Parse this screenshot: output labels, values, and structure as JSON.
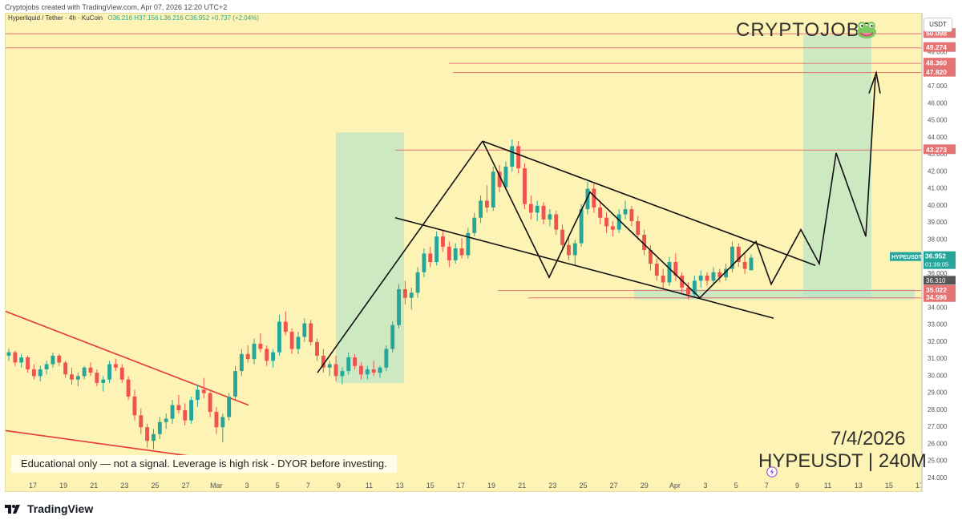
{
  "header": {
    "attribution": "Cryptojobs created with TradingView.com, Apr 07, 2026 12:20 UTC+2",
    "symbol_line": "Hyperliquid / Tether · 4h · KuCoin",
    "ohlc": "O36.216  H37.156  L36.216  C36.952  +0.737 (+2.04%)"
  },
  "branding": {
    "watermark": "CRYPTOJOBS",
    "date": "7/4/2026",
    "symbol_tf": "HYPEUSDT | 240M",
    "disclaimer": "Educational only — not a signal. Leverage is high risk - DYOR before investing.",
    "footer_logo": "TradingView",
    "currency": "USDT"
  },
  "colors": {
    "background": "#fdf3b4",
    "up": "#26a69a",
    "down": "#ef5350",
    "zone": "#b7e4c7",
    "level_line": "#e57373",
    "trend_red": "#e53935",
    "pattern": "#111111",
    "price_tag": "#26a69a"
  },
  "chart_data": {
    "type": "candlestick",
    "title": "",
    "timeframe": "4h",
    "exchange": "KuCoin",
    "pair": "HYPEUSDT",
    "y_axis": {
      "min": 24,
      "max": 51,
      "ticks": [
        24,
        25,
        26,
        27,
        28,
        29,
        30,
        31,
        32,
        33,
        34,
        35,
        36,
        37,
        38,
        39,
        40,
        41,
        42,
        43,
        44,
        45,
        46,
        47,
        48,
        49
      ]
    },
    "x_axis": {
      "tick_labels": [
        "17",
        "19",
        "21",
        "23",
        "25",
        "27",
        "Mar",
        "3",
        "5",
        "7",
        "9",
        "11",
        "13",
        "15",
        "17",
        "19",
        "21",
        "23",
        "25",
        "27",
        "29",
        "Apr",
        "3",
        "5",
        "7",
        "9",
        "11",
        "13",
        "15",
        "17"
      ]
    },
    "price_levels": [
      {
        "value": 50.098,
        "label": "50.098"
      },
      {
        "value": 49.274,
        "label": "49.274"
      },
      {
        "value": 48.36,
        "label": "48.360"
      },
      {
        "value": 47.82,
        "label": "47.820"
      },
      {
        "value": 43.273,
        "label": "43.273"
      },
      {
        "value": 35.022,
        "label": "35.022"
      },
      {
        "value": 34.596,
        "label": "34.596"
      }
    ],
    "current_price": {
      "label": "HYPEUSDT",
      "value": "36.952",
      "countdown": "01:39:05",
      "prev": "36.310"
    },
    "candles": [
      [
        31.2,
        31.6,
        30.9,
        31.4
      ],
      [
        31.4,
        31.5,
        30.6,
        30.8
      ],
      [
        30.8,
        31.3,
        30.5,
        31.1
      ],
      [
        31.1,
        31.2,
        30.2,
        30.4
      ],
      [
        30.4,
        30.7,
        29.8,
        30.0
      ],
      [
        30.0,
        30.6,
        29.7,
        30.4
      ],
      [
        30.4,
        30.9,
        30.1,
        30.7
      ],
      [
        30.7,
        31.4,
        30.5,
        31.2
      ],
      [
        31.2,
        31.3,
        30.6,
        30.8
      ],
      [
        30.8,
        30.9,
        29.9,
        30.1
      ],
      [
        30.1,
        30.5,
        29.5,
        29.8
      ],
      [
        29.8,
        30.2,
        29.4,
        30.0
      ],
      [
        30.0,
        30.6,
        29.8,
        30.5
      ],
      [
        30.5,
        30.8,
        30.0,
        30.2
      ],
      [
        30.2,
        30.4,
        29.4,
        29.6
      ],
      [
        29.6,
        30.0,
        29.1,
        29.8
      ],
      [
        29.8,
        30.9,
        29.6,
        30.7
      ],
      [
        30.7,
        31.0,
        30.3,
        30.5
      ],
      [
        30.5,
        30.7,
        29.6,
        29.8
      ],
      [
        29.8,
        30.0,
        28.6,
        28.8
      ],
      [
        28.8,
        29.2,
        27.4,
        27.7
      ],
      [
        27.7,
        28.1,
        26.6,
        27.0
      ],
      [
        27.0,
        27.2,
        25.8,
        26.2
      ],
      [
        26.2,
        26.9,
        25.7,
        26.6
      ],
      [
        26.6,
        27.6,
        26.3,
        27.3
      ],
      [
        27.3,
        27.8,
        26.9,
        27.5
      ],
      [
        27.5,
        28.6,
        27.2,
        28.3
      ],
      [
        28.3,
        28.9,
        27.8,
        28.0
      ],
      [
        28.0,
        28.4,
        27.1,
        27.4
      ],
      [
        27.4,
        28.8,
        27.2,
        28.6
      ],
      [
        28.6,
        29.5,
        28.2,
        29.2
      ],
      [
        29.2,
        29.9,
        28.7,
        29.0
      ],
      [
        29.0,
        29.1,
        27.6,
        27.9
      ],
      [
        27.9,
        28.2,
        26.6,
        27.0
      ],
      [
        27.0,
        27.8,
        26.1,
        27.6
      ],
      [
        27.6,
        29.0,
        27.4,
        28.8
      ],
      [
        28.8,
        30.6,
        28.6,
        30.3
      ],
      [
        30.3,
        31.6,
        30.0,
        31.3
      ],
      [
        31.3,
        31.8,
        30.8,
        31.0
      ],
      [
        31.0,
        32.2,
        30.7,
        31.9
      ],
      [
        31.9,
        32.5,
        31.4,
        31.6
      ],
      [
        31.6,
        31.8,
        30.6,
        30.9
      ],
      [
        30.9,
        31.6,
        30.5,
        31.4
      ],
      [
        31.4,
        33.6,
        31.2,
        33.2
      ],
      [
        33.2,
        33.8,
        32.4,
        32.6
      ],
      [
        32.6,
        32.8,
        31.3,
        31.6
      ],
      [
        31.6,
        32.6,
        31.3,
        32.3
      ],
      [
        32.3,
        33.4,
        32.0,
        33.1
      ],
      [
        33.1,
        33.3,
        31.8,
        32.0
      ],
      [
        32.0,
        32.2,
        30.9,
        31.2
      ],
      [
        31.2,
        31.6,
        30.2,
        30.5
      ],
      [
        30.5,
        30.9,
        30.0,
        30.7
      ],
      [
        30.7,
        31.2,
        29.7,
        30.0
      ],
      [
        30.0,
        30.5,
        29.5,
        30.3
      ],
      [
        30.3,
        31.4,
        30.1,
        31.1
      ],
      [
        31.1,
        31.3,
        30.4,
        30.6
      ],
      [
        30.6,
        30.8,
        29.8,
        30.1
      ],
      [
        30.1,
        30.6,
        29.8,
        30.4
      ],
      [
        30.4,
        30.9,
        30.0,
        30.2
      ],
      [
        30.2,
        30.6,
        29.9,
        30.5
      ],
      [
        30.5,
        31.8,
        30.3,
        31.6
      ],
      [
        31.6,
        33.2,
        31.4,
        33.0
      ],
      [
        33.0,
        35.4,
        32.8,
        35.1
      ],
      [
        35.1,
        35.6,
        34.2,
        34.6
      ],
      [
        34.6,
        35.2,
        33.9,
        34.9
      ],
      [
        34.9,
        36.4,
        34.6,
        36.1
      ],
      [
        36.1,
        37.5,
        35.8,
        37.2
      ],
      [
        37.2,
        37.6,
        36.4,
        36.7
      ],
      [
        36.7,
        38.5,
        36.5,
        38.2
      ],
      [
        38.2,
        38.6,
        37.3,
        37.6
      ],
      [
        37.6,
        37.9,
        36.4,
        36.8
      ],
      [
        36.8,
        37.8,
        36.6,
        37.5
      ],
      [
        37.5,
        38.1,
        36.9,
        37.1
      ],
      [
        37.1,
        38.7,
        36.9,
        38.4
      ],
      [
        38.4,
        39.6,
        38.2,
        39.3
      ],
      [
        39.3,
        40.6,
        39.0,
        40.3
      ],
      [
        40.3,
        41.2,
        39.6,
        39.9
      ],
      [
        39.9,
        42.3,
        39.7,
        42.0
      ],
      [
        42.0,
        42.4,
        40.8,
        41.1
      ],
      [
        41.1,
        42.6,
        40.9,
        42.3
      ],
      [
        42.3,
        43.9,
        42.0,
        43.5
      ],
      [
        43.5,
        43.8,
        41.9,
        42.2
      ],
      [
        42.2,
        42.5,
        39.8,
        40.1
      ],
      [
        40.1,
        40.6,
        39.2,
        39.6
      ],
      [
        39.6,
        40.3,
        39.1,
        40.0
      ],
      [
        40.0,
        40.2,
        38.9,
        39.2
      ],
      [
        39.2,
        39.8,
        38.8,
        39.5
      ],
      [
        39.5,
        39.7,
        38.3,
        38.6
      ],
      [
        38.6,
        38.9,
        37.4,
        37.7
      ],
      [
        37.7,
        38.2,
        36.8,
        37.1
      ],
      [
        37.1,
        38.0,
        36.5,
        37.8
      ],
      [
        37.8,
        40.1,
        37.6,
        39.8
      ],
      [
        39.8,
        41.4,
        39.5,
        41.0
      ],
      [
        41.0,
        41.3,
        39.6,
        39.9
      ],
      [
        39.9,
        40.2,
        38.9,
        39.3
      ],
      [
        39.3,
        39.6,
        38.4,
        38.8
      ],
      [
        38.8,
        39.1,
        38.2,
        38.6
      ],
      [
        38.6,
        39.8,
        38.4,
        39.5
      ],
      [
        39.5,
        40.3,
        39.2,
        39.8
      ],
      [
        39.8,
        40.0,
        38.8,
        39.1
      ],
      [
        39.1,
        39.4,
        38.0,
        38.3
      ],
      [
        38.3,
        38.6,
        37.1,
        37.4
      ],
      [
        37.4,
        37.7,
        36.2,
        36.6
      ],
      [
        36.6,
        36.9,
        35.6,
        35.9
      ],
      [
        35.9,
        36.3,
        35.1,
        35.5
      ],
      [
        35.5,
        37.0,
        35.3,
        36.7
      ],
      [
        36.7,
        37.2,
        35.6,
        35.9
      ],
      [
        35.9,
        36.1,
        34.9,
        35.2
      ],
      [
        35.2,
        35.5,
        34.5,
        34.8
      ],
      [
        34.8,
        35.9,
        34.6,
        35.6
      ],
      [
        35.6,
        36.2,
        35.2,
        35.9
      ],
      [
        35.9,
        36.1,
        35.3,
        35.6
      ],
      [
        35.6,
        36.4,
        35.4,
        36.1
      ],
      [
        36.1,
        36.3,
        35.5,
        35.8
      ],
      [
        35.8,
        36.6,
        35.6,
        36.3
      ],
      [
        36.3,
        37.9,
        36.1,
        37.6
      ],
      [
        37.6,
        37.8,
        36.4,
        36.7
      ],
      [
        36.7,
        37.2,
        36.0,
        36.3
      ],
      [
        36.216,
        37.156,
        36.216,
        36.952
      ]
    ],
    "annotations": {
      "zones": [
        "consolidation-zone-1",
        "target-zone",
        "support-zone"
      ],
      "patterns": [
        "rising-impulse",
        "descending-channel",
        "projected-path"
      ]
    }
  }
}
